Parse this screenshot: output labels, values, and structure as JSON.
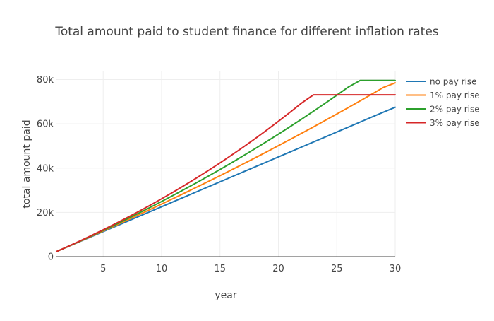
{
  "chart_data": {
    "type": "line",
    "title": "Total amount paid to student finance for different inflation rates",
    "xlabel": "year",
    "ylabel": "total amount paid",
    "xlim": [
      1,
      30
    ],
    "ylim": [
      0,
      84000
    ],
    "x_ticks": [
      5,
      10,
      15,
      20,
      25,
      30
    ],
    "x_tick_labels": [
      "5",
      "10",
      "15",
      "20",
      "25",
      "30"
    ],
    "y_ticks": [
      0,
      20000,
      40000,
      60000,
      80000
    ],
    "y_tick_labels": [
      "0",
      "20k",
      "40k",
      "60k",
      "80k"
    ],
    "grid": true,
    "legend_position": "right",
    "x": [
      1,
      2,
      3,
      4,
      5,
      6,
      7,
      8,
      9,
      10,
      11,
      12,
      13,
      14,
      15,
      16,
      17,
      18,
      19,
      20,
      21,
      22,
      23,
      24,
      25,
      26,
      27,
      28,
      29,
      30
    ],
    "series": [
      {
        "name": "no pay rise",
        "color": "#1f77b4",
        "values": [
          2300,
          4550,
          6800,
          9050,
          11300,
          13550,
          15800,
          18050,
          20300,
          22550,
          24800,
          27050,
          29300,
          31550,
          33800,
          36050,
          38300,
          40550,
          42800,
          45050,
          47300,
          49550,
          51800,
          54050,
          56300,
          58550,
          60800,
          63050,
          65300,
          67500
        ]
      },
      {
        "name": "1% pay rise",
        "color": "#ff7f0e",
        "values": [
          2300,
          4580,
          6890,
          9220,
          11580,
          13960,
          16370,
          18800,
          21260,
          23750,
          26260,
          28800,
          31370,
          33960,
          36580,
          39230,
          41910,
          44620,
          47360,
          50130,
          52930,
          55760,
          58620,
          61510,
          64440,
          67400,
          70390,
          73420,
          76480,
          78500
        ]
      },
      {
        "name": "2% pay rise",
        "color": "#2ca02c",
        "values": [
          2300,
          4620,
          6980,
          9390,
          11850,
          14360,
          16920,
          19530,
          22200,
          24920,
          27700,
          30530,
          33420,
          36370,
          39380,
          42450,
          45580,
          48770,
          52020,
          55340,
          58720,
          62170,
          65690,
          69280,
          72940,
          76670,
          79600,
          79600,
          79600,
          79600
        ]
      },
      {
        "name": "3% pay rise",
        "color": "#d62728",
        "values": [
          2300,
          4650,
          7070,
          9560,
          12120,
          14760,
          17480,
          20280,
          23160,
          26130,
          29180,
          32330,
          35570,
          38910,
          42340,
          45880,
          49530,
          53280,
          57150,
          61130,
          65230,
          69450,
          73100,
          73100,
          73100,
          73100,
          73100,
          73100,
          73100,
          73100
        ]
      }
    ]
  }
}
